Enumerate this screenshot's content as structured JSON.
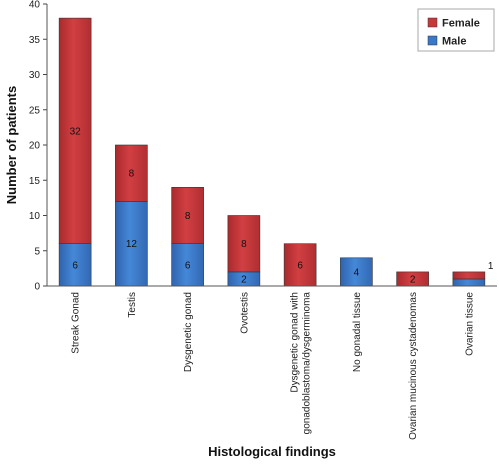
{
  "chart_data": {
    "type": "bar",
    "stacked": true,
    "categories": [
      "Streak Gonad",
      "Testis",
      "Dysgenetic gonad",
      "Ovotestis",
      "Dysgenetic gonad with gonadoblastoma/dysgerminoma",
      "No gonadal tissue",
      "Ovarian mucinous cystadenomas",
      "Ovarian tissue"
    ],
    "category_lines": [
      [
        "Streak Gonad"
      ],
      [
        "Testis"
      ],
      [
        "Dysgenetic gonad"
      ],
      [
        "Ovotestis"
      ],
      [
        "Dysgenetic gonad with",
        "gonadoblastoma/dysgerminoma"
      ],
      [
        "No gonadal tissue"
      ],
      [
        "Ovarian mucinous cystadenomas"
      ],
      [
        "Ovarian tissue"
      ]
    ],
    "series": [
      {
        "name": "Male",
        "color": "#3a78c9",
        "values": [
          6,
          12,
          6,
          2,
          0,
          4,
          0,
          1
        ],
        "labels": [
          "6",
          "12",
          "6",
          "2",
          "",
          "4",
          "",
          ""
        ]
      },
      {
        "name": "Female",
        "color": "#c8373a",
        "values": [
          32,
          8,
          8,
          8,
          6,
          0,
          2,
          1
        ],
        "labels": [
          "32",
          "8",
          "8",
          "8",
          "6",
          "",
          "2",
          "1"
        ]
      }
    ],
    "xlabel": "Histological findings",
    "ylabel": "Number of patients",
    "ylim": [
      0,
      40
    ],
    "yticks": [
      "0",
      "5",
      "10",
      "15",
      "20",
      "25",
      "30",
      "35",
      "40"
    ],
    "grid": false,
    "legend": {
      "position": "top-right",
      "entries": [
        "Female",
        "Male"
      ],
      "colors": [
        "#c8373a",
        "#3a78c9"
      ]
    }
  }
}
